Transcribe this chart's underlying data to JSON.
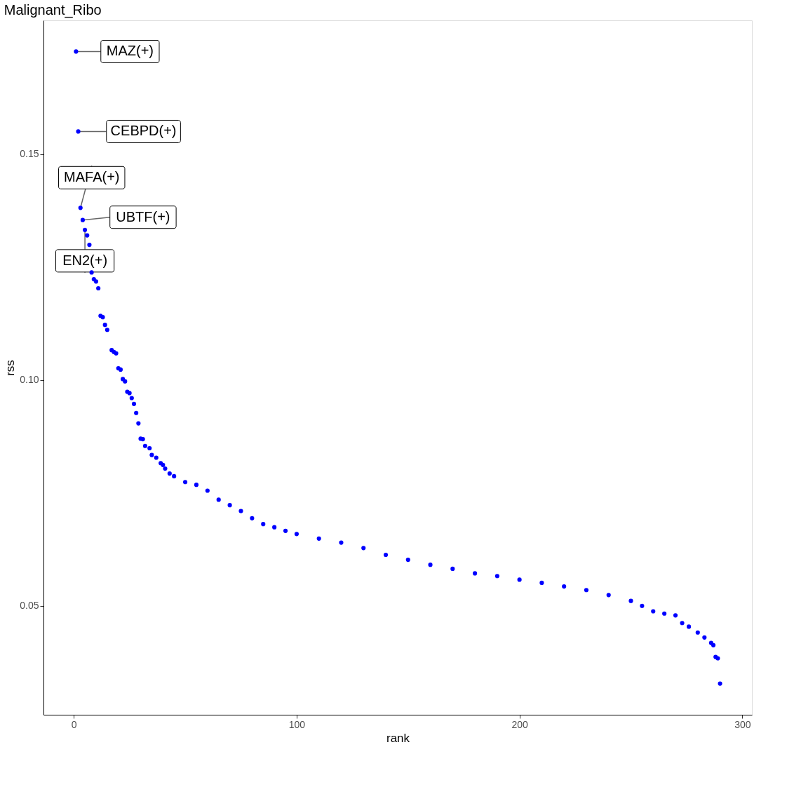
{
  "chart_data": {
    "type": "scatter",
    "title": "Malignant_Ribo",
    "xlabel": "rank",
    "ylabel": "rss",
    "xlim": [
      -13.6,
      304.3
    ],
    "ylim": [
      0.0259,
      0.1796
    ],
    "xticks": [
      0,
      100,
      200,
      300
    ],
    "yticks": [
      0.05,
      {
        "value": 0.1,
        "label": "0.10"
      },
      0.15
    ],
    "grid": false,
    "marker": "circle",
    "series": [
      {
        "color": "#0000ff",
        "x": [
          1,
          2,
          3,
          4,
          5,
          6,
          7,
          8,
          9,
          10,
          11,
          12,
          13,
          14,
          15,
          17,
          18,
          19,
          20,
          21,
          22,
          23,
          24,
          25,
          26,
          27,
          28,
          29,
          30,
          31,
          32,
          34,
          35,
          37,
          39,
          40,
          41,
          43,
          45,
          50,
          55,
          60,
          65,
          70,
          75,
          80,
          85,
          90,
          95,
          100,
          110,
          120,
          130,
          140,
          150,
          160,
          170,
          180,
          190,
          200,
          210,
          220,
          230,
          240,
          250,
          255,
          260,
          265,
          270,
          273,
          276,
          280,
          283,
          286,
          287,
          288,
          289,
          290
        ],
        "values": [
          0.1727,
          0.155,
          0.1381,
          0.1354,
          0.1332,
          0.132,
          0.1299,
          0.1238,
          0.1223,
          0.1218,
          0.1203,
          0.1142,
          0.1139,
          0.1122,
          0.1111,
          0.1066,
          0.1062,
          0.1059,
          0.1026,
          0.1023,
          0.1002,
          0.0997,
          0.0974,
          0.0971,
          0.096,
          0.0947,
          0.0927,
          0.0904,
          0.087,
          0.0869,
          0.0854,
          0.0849,
          0.0834,
          0.0828,
          0.0816,
          0.0812,
          0.0804,
          0.0793,
          0.0787,
          0.0774,
          0.0768,
          0.0755,
          0.0735,
          0.0723,
          0.071,
          0.0694,
          0.0681,
          0.0674,
          0.0666,
          0.0659,
          0.0649,
          0.064,
          0.0628,
          0.0613,
          0.0602,
          0.0591,
          0.0582,
          0.0572,
          0.0566,
          0.0558,
          0.0551,
          0.0543,
          0.0535,
          0.0524,
          0.0511,
          0.05,
          0.0488,
          0.0483,
          0.0479,
          0.0462,
          0.0454,
          0.0441,
          0.043,
          0.0418,
          0.0413,
          0.0387,
          0.0384,
          0.0328
        ]
      }
    ],
    "annotations": [
      {
        "text": "MAZ(+)",
        "x": 1,
        "y": 0.1727
      },
      {
        "text": "CEBPD(+)",
        "x": 2,
        "y": 0.155
      },
      {
        "text": "MAFA(+)",
        "x": 3,
        "y": 0.1381
      },
      {
        "text": "UBTF(+)",
        "x": 4,
        "y": 0.1354
      },
      {
        "text": "EN2(+)",
        "x": 5,
        "y": 0.1332
      }
    ]
  }
}
